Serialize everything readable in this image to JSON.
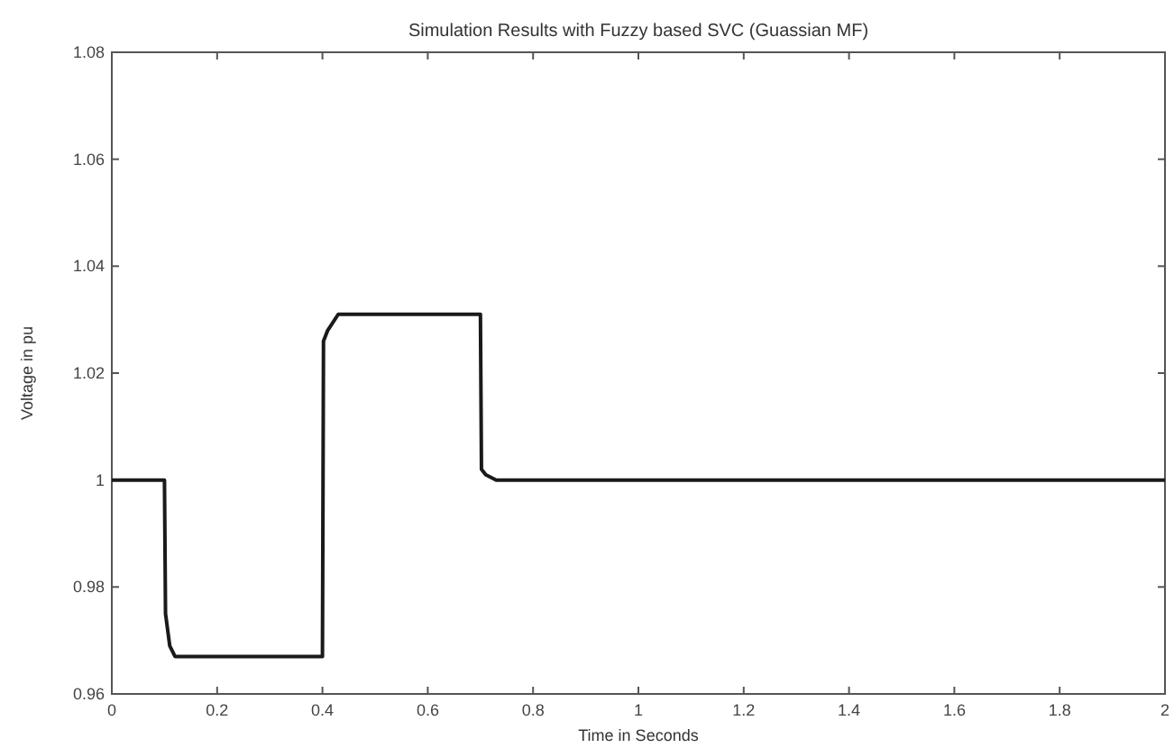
{
  "chart_data": {
    "type": "line",
    "title": "Simulation Results with Fuzzy based SVC (Guassian MF)",
    "xlabel": "Time in Seconds",
    "ylabel": "Voltage in pu",
    "x": [
      0,
      0.1,
      0.102,
      0.11,
      0.12,
      0.4,
      0.402,
      0.41,
      0.43,
      0.7,
      0.702,
      0.71,
      0.73,
      2
    ],
    "series": [
      {
        "color": "#1a1a1a",
        "values": [
          1,
          1,
          0.975,
          0.969,
          0.967,
          0.967,
          1.026,
          1.028,
          1.031,
          1.031,
          1.002,
          1.001,
          1,
          1
        ]
      }
    ],
    "xlim": [
      0,
      2
    ],
    "ylim": [
      0.96,
      1.08
    ],
    "xticks": [
      0,
      0.2,
      0.4,
      0.6,
      0.8,
      1,
      1.2,
      1.4,
      1.6,
      1.8,
      2
    ],
    "yticks": [
      0.96,
      0.98,
      1,
      1.02,
      1.04,
      1.06,
      1.08
    ],
    "grid": false
  }
}
